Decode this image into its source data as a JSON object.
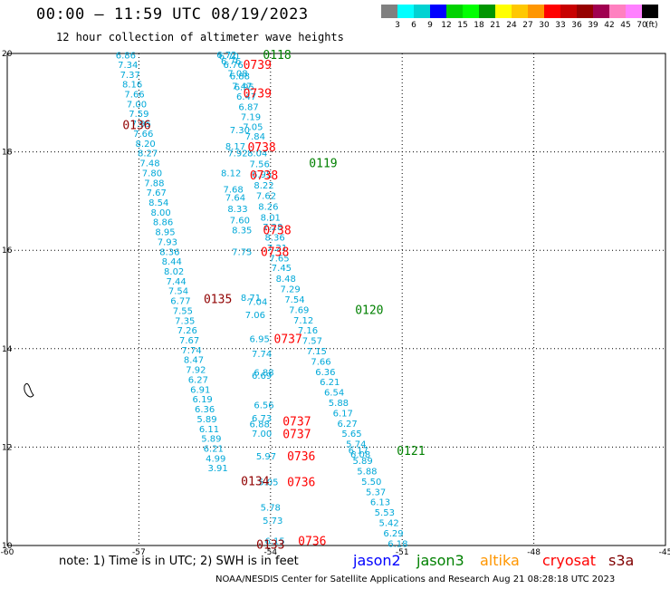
{
  "title": "00:00 – 11:59 UTC 08/19/2023",
  "subtitle": "12 hour collection of altimeter wave heights",
  "colorbar": {
    "labels": [
      "3",
      "6",
      "9",
      "12",
      "15",
      "18",
      "21",
      "24",
      "27",
      "30",
      "33",
      "36",
      "39",
      "42",
      "45",
      "70"
    ],
    "unit": "(ft)",
    "colors": [
      "#808080",
      "#00ffff",
      "#00d2d2",
      "#0000ff",
      "#00d200",
      "#00ff00",
      "#009600",
      "#ffff00",
      "#ffc800",
      "#ff9600",
      "#ff0000",
      "#c80000",
      "#960000",
      "#a00050",
      "#ff80c0",
      "#ff80ff",
      "#000000"
    ]
  },
  "map": {
    "lon_ticks": [
      "-60",
      "-57",
      "-54",
      "-51",
      "-48",
      "-45"
    ],
    "lat_ticks": [
      "20",
      "18",
      "16",
      "14",
      "12",
      "10"
    ],
    "lon_range": [
      -60,
      -45
    ],
    "lat_range": [
      10,
      20
    ]
  },
  "tracks": [
    {
      "id": "0136",
      "color": "#900000",
      "label_pos": [
        -57.05,
        18.55
      ],
      "points": [
        [
          -57.3,
          19.97,
          "6.86"
        ],
        [
          -57.25,
          19.78,
          "7.34"
        ],
        [
          -57.2,
          19.58,
          "7.37"
        ],
        [
          -57.15,
          19.38,
          "8.16"
        ],
        [
          -57.1,
          19.18,
          "7.66"
        ],
        [
          -57.05,
          18.98,
          "7.00"
        ],
        [
          -57.0,
          18.78,
          "7.59"
        ],
        [
          -56.95,
          18.58,
          "7.95"
        ],
        [
          -56.9,
          18.38,
          "7.66"
        ],
        [
          -56.85,
          18.18,
          "8.20"
        ],
        [
          -56.8,
          17.98,
          "8.27"
        ],
        [
          -56.75,
          17.78,
          "7.48"
        ],
        [
          -56.7,
          17.58,
          "7.80"
        ],
        [
          -56.65,
          17.38,
          "7.88"
        ],
        [
          -56.6,
          17.18,
          "7.67"
        ],
        [
          -56.55,
          16.98,
          "8.54"
        ],
        [
          -56.5,
          16.78,
          "8.00"
        ]
      ]
    },
    {
      "id": "0135",
      "color": "#900000",
      "label_pos": [
        -55.2,
        15.02
      ],
      "points": [
        [
          -56.45,
          16.58,
          "8.86"
        ],
        [
          -56.4,
          16.38,
          "8.95"
        ],
        [
          -56.35,
          16.18,
          "7.93"
        ],
        [
          -56.3,
          15.98,
          "8.36"
        ],
        [
          -56.25,
          15.78,
          "8.44"
        ],
        [
          -56.2,
          15.58,
          "8.02"
        ],
        [
          -56.15,
          15.38,
          "7.44"
        ],
        [
          -56.1,
          15.18,
          "7.54"
        ],
        [
          -56.05,
          14.98,
          "6.77"
        ],
        [
          -56.0,
          14.78,
          "7.55"
        ],
        [
          -55.95,
          14.58,
          "7.35"
        ],
        [
          -55.9,
          14.38,
          "7.26"
        ],
        [
          -55.85,
          14.18,
          "7.67"
        ],
        [
          -55.8,
          13.98,
          "7.74"
        ],
        [
          -55.75,
          13.78,
          "8.47"
        ],
        [
          -55.7,
          13.58,
          "7.92"
        ],
        [
          -55.65,
          13.38,
          "6.27"
        ]
      ]
    },
    {
      "id": "0134",
      "color": "#900000",
      "label_pos": [
        -54.35,
        11.32
      ],
      "points": [
        [
          -55.6,
          13.18,
          "6.91"
        ],
        [
          -55.55,
          12.98,
          "6.19"
        ],
        [
          -55.5,
          12.78,
          "6.36"
        ],
        [
          -55.45,
          12.58,
          "5.89"
        ],
        [
          -55.4,
          12.38,
          "6.11"
        ],
        [
          -55.35,
          12.18,
          "5.89"
        ],
        [
          -55.3,
          11.98,
          "6.21"
        ],
        [
          -55.25,
          11.78,
          "4.99"
        ],
        [
          -55.2,
          11.58,
          "3.91"
        ]
      ]
    },
    {
      "id": "0133",
      "color": "#900000",
      "label_pos": [
        -54.0,
        10.03
      ],
      "points": []
    },
    {
      "id": "0739",
      "color": "#ff0000",
      "label_pos": [
        -54.3,
        19.78
      ],
      "points": [
        [
          -55.0,
          19.98,
          "6.72"
        ],
        [
          -54.95,
          19.95,
          "6.70"
        ],
        [
          -54.9,
          19.85,
          "6.76"
        ],
        [
          -54.85,
          19.78,
          "6.76"
        ],
        [
          -54.75,
          19.6,
          "7.08"
        ],
        [
          -54.7,
          19.55,
          "6.88"
        ],
        [
          -54.65,
          19.35,
          "7.47"
        ],
        [
          -54.6,
          19.33,
          "6.95"
        ],
        [
          -54.55,
          19.13,
          "6.47"
        ],
        [
          -54.5,
          18.92,
          "6.87"
        ],
        [
          -54.45,
          18.72,
          "7.19"
        ],
        [
          -54.4,
          18.52,
          "7.05"
        ],
        [
          -54.35,
          18.32,
          "7.84"
        ]
      ]
    },
    {
      "id": "0739b",
      "label": "0739",
      "color": "#ff0000",
      "label_pos": [
        -54.3,
        19.2
      ],
      "points": []
    },
    {
      "id": "0738",
      "color": "#ff0000",
      "label_pos": [
        -54.2,
        18.1
      ],
      "points": [
        [
          -54.7,
          18.45,
          "7.30"
        ],
        [
          -54.8,
          18.12,
          "8.17"
        ],
        [
          -54.75,
          17.98,
          "7.92"
        ],
        [
          -54.3,
          17.98,
          "8.04"
        ],
        [
          -54.25,
          17.76,
          "7.56"
        ],
        [
          -54.2,
          17.55,
          "6.95"
        ],
        [
          -54.15,
          17.33,
          "8.22"
        ],
        [
          -54.1,
          17.12,
          "7.62"
        ],
        [
          -54.05,
          16.9,
          "8.26"
        ],
        [
          -54.0,
          16.68,
          "8.01"
        ],
        [
          -53.95,
          16.48,
          "7.28"
        ],
        [
          -53.9,
          16.27,
          "8.36"
        ],
        [
          -53.85,
          16.06,
          "7.21"
        ]
      ]
    },
    {
      "id": "0738b",
      "label": "0738",
      "color": "#ff0000",
      "label_pos": [
        -54.15,
        17.53
      ],
      "points": [
        [
          -54.9,
          17.58,
          "8.12"
        ],
        [
          -54.85,
          17.25,
          "7.68"
        ],
        [
          -54.8,
          17.08,
          "7.64"
        ],
        [
          -54.75,
          16.85,
          "8.33"
        ],
        [
          -54.7,
          16.62,
          "7.60"
        ],
        [
          -54.65,
          16.42,
          "8.35"
        ]
      ]
    },
    {
      "id": "0738c",
      "label": "0738",
      "color": "#ff0000",
      "label_pos": [
        -53.85,
        16.42
      ],
      "points": []
    },
    {
      "id": "0738d",
      "label": "0738",
      "color": "#ff0000",
      "label_pos": [
        -53.9,
        15.98
      ],
      "points": [
        [
          -54.65,
          15.98,
          "7.75"
        ]
      ]
    },
    {
      "id": "0737",
      "color": "#ff0000",
      "label_pos": [
        -53.6,
        14.21
      ],
      "points": [
        [
          -54.45,
          15.05,
          "8.71"
        ],
        [
          -54.3,
          14.96,
          "7.04"
        ],
        [
          -54.35,
          14.7,
          "7.06"
        ],
        [
          -54.25,
          14.21,
          "6.95"
        ],
        [
          -54.2,
          13.9,
          "7.74"
        ],
        [
          -54.15,
          13.53,
          "6.88"
        ],
        [
          -54.2,
          13.46,
          "6.69"
        ],
        [
          -54.15,
          12.86,
          "6.56"
        ],
        [
          -54.2,
          12.6,
          "6.73"
        ],
        [
          -54.25,
          12.48,
          "6.88"
        ],
        [
          -54.2,
          12.28,
          "7.00"
        ]
      ]
    },
    {
      "id": "0737b",
      "label": "0737",
      "color": "#ff0000",
      "label_pos": [
        -53.4,
        12.53
      ],
      "points": []
    },
    {
      "id": "0737c",
      "label": "0737",
      "color": "#ff0000",
      "label_pos": [
        -53.4,
        12.27
      ],
      "points": []
    },
    {
      "id": "0736",
      "color": "#ff0000",
      "label_pos": [
        -53.3,
        11.82
      ],
      "points": [
        [
          -54.1,
          11.82,
          "5.97"
        ],
        [
          -54.05,
          11.3,
          "5.05"
        ],
        [
          -54.0,
          10.78,
          "5.78"
        ],
        [
          -53.95,
          10.52,
          "5.73"
        ],
        [
          -53.9,
          10.1,
          "6.15"
        ]
      ]
    },
    {
      "id": "0736b",
      "label": "0736",
      "color": "#ff0000",
      "label_pos": [
        -53.3,
        11.3
      ],
      "points": []
    },
    {
      "id": "0736c",
      "label": "0736",
      "color": "#ff0000",
      "label_pos": [
        -53.05,
        10.1
      ],
      "points": []
    },
    {
      "id": "0118",
      "color": "#008000",
      "label_pos": [
        -53.85,
        19.98
      ],
      "points": []
    },
    {
      "id": "0119",
      "color": "#008000",
      "label_pos": [
        -52.8,
        17.78
      ],
      "points": []
    },
    {
      "id": "0120",
      "color": "#008000",
      "label_pos": [
        -51.75,
        14.8
      ],
      "points": [
        [
          -53.8,
          15.85,
          "7.65"
        ],
        [
          -53.75,
          15.65,
          "7.45"
        ],
        [
          -53.65,
          15.43,
          "8.48"
        ],
        [
          -53.55,
          15.22,
          "7.29"
        ],
        [
          -53.45,
          15.01,
          "7.54"
        ],
        [
          -53.35,
          14.8,
          "7.69"
        ],
        [
          -53.25,
          14.59,
          "7.12"
        ],
        [
          -53.15,
          14.38,
          "7.16"
        ],
        [
          -53.05,
          14.17,
          "7.57"
        ],
        [
          -52.95,
          13.96,
          "7.15"
        ],
        [
          -52.85,
          13.75,
          "7.66"
        ],
        [
          -52.75,
          13.54,
          "6.36"
        ],
        [
          -52.65,
          13.33,
          "6.21"
        ],
        [
          -52.55,
          13.12,
          "6.54"
        ],
        [
          -52.45,
          12.91,
          "5.88"
        ],
        [
          -52.35,
          12.7,
          "6.17"
        ],
        [
          -52.25,
          12.49,
          "6.27"
        ],
        [
          -52.15,
          12.28,
          "5.65"
        ],
        [
          -52.05,
          12.07,
          "5.74"
        ],
        [
          -51.95,
          11.86,
          "6.08"
        ]
      ]
    },
    {
      "id": "0121",
      "color": "#008000",
      "label_pos": [
        -50.8,
        11.93
      ],
      "points": [
        [
          -52.0,
          11.94,
          "6.17"
        ],
        [
          -51.9,
          11.73,
          "5.89"
        ],
        [
          -51.8,
          11.52,
          "5.88"
        ],
        [
          -51.7,
          11.31,
          "5.50"
        ],
        [
          -51.6,
          11.1,
          "5.37"
        ],
        [
          -51.5,
          10.89,
          "6.13"
        ],
        [
          -51.4,
          10.68,
          "5.53"
        ],
        [
          -51.3,
          10.47,
          "5.42"
        ],
        [
          -51.2,
          10.26,
          "6.29"
        ],
        [
          -51.1,
          10.05,
          "6.18"
        ]
      ]
    }
  ],
  "note": "note:  1) Time is in UTC;  2) SWH is in feet",
  "missions": [
    {
      "name": "jason2",
      "color": "#0000ff"
    },
    {
      "name": "jason3",
      "color": "#008000"
    },
    {
      "name": "altika",
      "color": "#ff9600"
    },
    {
      "name": "cryosat",
      "color": "#ff0000"
    },
    {
      "name": "s3a",
      "color": "#800000"
    }
  ],
  "footer": "NOAA/NESDIS Center for Satellite Applications and Research    Aug 21 08:28:18 UTC 2023"
}
